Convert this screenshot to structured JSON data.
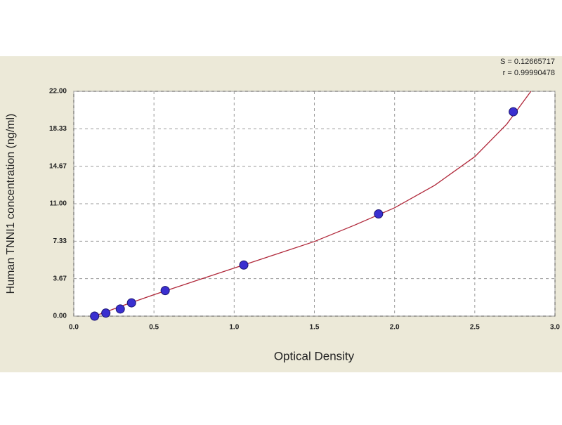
{
  "chart_data": {
    "type": "scatter",
    "x_label": "Optical Density",
    "y_label": "Human TNNI1 concentration (ng/ml)",
    "annotations": [
      "S = 0.12665717",
      "r = 0.99990478"
    ],
    "xlim": [
      0,
      3
    ],
    "ylim": [
      0,
      22
    ],
    "xticks": [
      {
        "value": 0,
        "label": "0.0"
      },
      0.5,
      {
        "value": 1,
        "label": "1.0"
      },
      1.5,
      {
        "value": 2,
        "label": "2.0"
      },
      2.5,
      {
        "value": 3,
        "label": "3.0"
      }
    ],
    "yticks": [
      {
        "value": 0,
        "label": "0.00"
      },
      {
        "value": 3.67,
        "label": "3.67"
      },
      {
        "value": 7.33,
        "label": "7.33"
      },
      {
        "value": 11,
        "label": "11.00"
      },
      {
        "value": 14.67,
        "label": "14.67"
      },
      {
        "value": 18.33,
        "label": "18.33"
      },
      {
        "value": 22,
        "label": "22.00"
      }
    ],
    "grid": true,
    "series": [
      {
        "style": "markers",
        "color": "#3a2fd0",
        "x": [
          0.13,
          0.2,
          0.29,
          0.36,
          0.57,
          1.06,
          1.9,
          2.74
        ],
        "y": [
          0,
          0.3,
          0.7,
          1.3,
          2.5,
          5,
          10,
          20
        ]
      },
      {
        "style": "line",
        "color": "#b0283a",
        "x": [
          0.13,
          0.3,
          0.5,
          0.75,
          1.0,
          1.25,
          1.5,
          1.75,
          2.0,
          2.25,
          2.5,
          2.7,
          2.85
        ],
        "y": [
          0,
          1.0,
          2.1,
          3.4,
          4.7,
          6.0,
          7.3,
          8.9,
          10.6,
          12.8,
          15.6,
          18.8,
          22
        ]
      }
    ]
  }
}
